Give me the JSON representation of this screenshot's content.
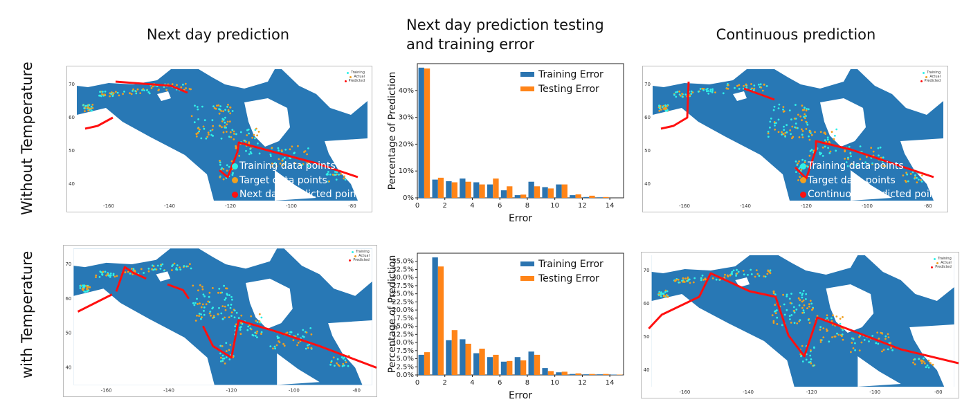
{
  "column_titles": {
    "next_day": "Next day prediction",
    "error_line1": "Next day prediction testing",
    "error_line2": "and training error",
    "continuous": "Continuous prediction"
  },
  "row_titles": {
    "without": "Without Temperature",
    "with": "with Temperature"
  },
  "map_mini_legend": {
    "training": "Training",
    "actual": "Actual",
    "predicted": "Predicted"
  },
  "map_axes": {
    "x_ticks": [
      "-160",
      "-140",
      "-120",
      "-100",
      "-80"
    ],
    "y_ticks": [
      "70",
      "60",
      "50",
      "40"
    ]
  },
  "overlay_legend_next_day": {
    "training": "Training data points",
    "target": "Target data points",
    "predicted": "Next day predicted points"
  },
  "overlay_legend_continuous": {
    "training": "Training data points",
    "target": "Target data points",
    "predicted": "Continuous predicted points"
  },
  "colors": {
    "ocean_land": "#2878b5",
    "training": "#30f0e8",
    "target": "#f0a020",
    "predicted": "#ff1010",
    "bar_training": "#2b74b0",
    "bar_testing": "#ff8418"
  },
  "chart_data": [
    {
      "type": "bar",
      "xlabel": "Error",
      "ylabel": "Percentage of Prediction",
      "x": [
        0.5,
        1.5,
        2.5,
        3.5,
        4.5,
        5.5,
        6.5,
        7.5,
        8.5,
        9.5,
        10.5,
        11.5,
        12.5,
        13.5
      ],
      "xlim": [
        0,
        15
      ],
      "ylim": [
        0,
        50
      ],
      "x_ticks": [
        "0",
        "2",
        "4",
        "6",
        "8",
        "10",
        "12",
        "14"
      ],
      "y_ticks": [
        "0%",
        "10%",
        "20%",
        "30%",
        "40%"
      ],
      "series": [
        {
          "name": "Training Error",
          "values": [
            48.5,
            6.8,
            6.2,
            7.2,
            5.8,
            5.0,
            2.8,
            1.0,
            6.0,
            4.0,
            5.0,
            1.0,
            0.3,
            0.2
          ]
        },
        {
          "name": "Testing Error",
          "values": [
            48.2,
            7.5,
            5.8,
            6.0,
            5.0,
            7.2,
            4.3,
            1.2,
            4.3,
            3.5,
            5.0,
            1.3,
            0.8,
            0.3
          ]
        }
      ]
    },
    {
      "type": "bar",
      "xlabel": "Error",
      "ylabel": "Percentage of Prediction",
      "x": [
        0.5,
        1.5,
        2.5,
        3.5,
        4.5,
        5.5,
        6.5,
        7.5,
        8.5,
        9.5,
        10.5,
        11.5,
        12.5,
        13.5,
        14.5
      ],
      "xlim": [
        0,
        15
      ],
      "ylim": [
        0,
        37.5
      ],
      "x_ticks": [
        "0",
        "2",
        "4",
        "6",
        "8",
        "10",
        "12",
        "14"
      ],
      "y_ticks": [
        "0.0%",
        "2.5%",
        "5.0%",
        "7.5%",
        "10.0%",
        "12.5%",
        "15.0%",
        "17.5%",
        "20.0%",
        "22.5%",
        "25.0%",
        "27.5%",
        "30.0%",
        "32.5%",
        "35.0%"
      ],
      "series": [
        {
          "name": "Training Error",
          "values": [
            6.2,
            36.2,
            10.7,
            11.0,
            6.7,
            5.5,
            4.1,
            5.5,
            7.2,
            2.1,
            0.8,
            0.3,
            0.2,
            0.2,
            0.1
          ]
        },
        {
          "name": "Testing Error",
          "values": [
            7.0,
            33.4,
            13.8,
            9.6,
            8.1,
            6.2,
            4.3,
            4.5,
            6.2,
            1.2,
            1.0,
            0.5,
            0.3,
            0.3,
            0.1
          ]
        }
      ]
    }
  ]
}
